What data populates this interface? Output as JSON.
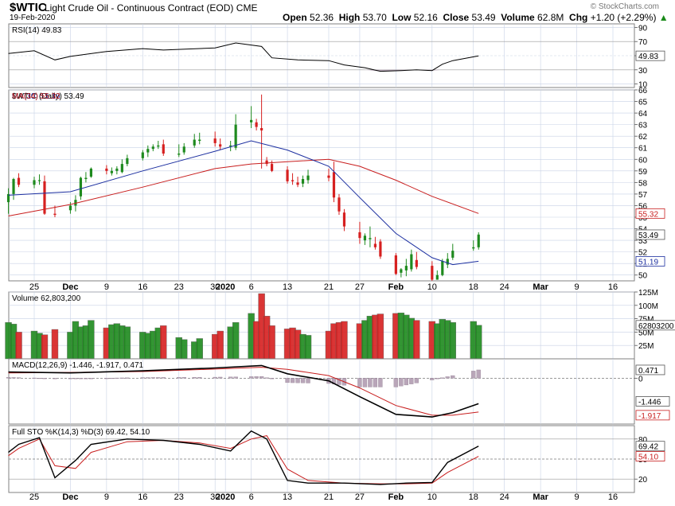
{
  "header": {
    "symbol": "$WTIC",
    "name": "Light Crude Oil - Continuous Contract (EOD)",
    "exchange": "CME",
    "date": "19-Feb-2020",
    "brand": "© StockCharts.com",
    "open_label": "Open",
    "open": "52.36",
    "high_label": "High",
    "high": "53.70",
    "low_label": "Low",
    "low": "52.16",
    "close_label": "Close",
    "close": "53.49",
    "volume_label": "Volume",
    "volume": "62.8M",
    "chg_label": "Chg",
    "chg": "+1.20 (+2.29%)",
    "chg_icon": "up-triangle-icon"
  },
  "colors": {
    "up": "#1e8a1e",
    "down": "#d62020",
    "ma10": "#1c2fa0",
    "ma34": "#c81e1e",
    "grid": "#c8d2e6",
    "panel_border": "#808080",
    "rsi_fill": "#b29cb2"
  },
  "chart_data": [
    {
      "type": "candlestick",
      "title": "$WTIC (Daily) 53.49",
      "legend": [
        {
          "name": "$WTIC (Daily)",
          "value": "53.49"
        },
        {
          "name": "MA(10)",
          "value": "51.19"
        },
        {
          "name": "MA(34)",
          "value": "55.32"
        }
      ],
      "ylim": [
        49.5,
        66
      ],
      "yticks": [
        50,
        51,
        52,
        53,
        54,
        55,
        56,
        57,
        58,
        59,
        60,
        61,
        62,
        63,
        64,
        65,
        66
      ],
      "value_tags": [
        {
          "label": "55.32",
          "value": 55.32
        },
        {
          "label": "53.49",
          "value": 53.49
        },
        {
          "label": "51.19",
          "value": 51.19
        }
      ],
      "x_ticks": [
        "25",
        "Dec",
        "9",
        "16",
        "23",
        "30",
        "2020",
        "6",
        "13",
        "21",
        "27",
        "Feb",
        "10",
        "18",
        "24",
        "Mar",
        "9",
        "16"
      ],
      "x_tick_dates": [
        "2019-11-25",
        "2019-12-02",
        "2019-12-09",
        "2019-12-16",
        "2019-12-23",
        "2019-12-30",
        "2020-01-01",
        "2020-01-06",
        "2020-01-13",
        "2020-01-21",
        "2020-01-27",
        "2020-02-03",
        "2020-02-10",
        "2020-02-18",
        "2020-02-24",
        "2020-03-02",
        "2020-03-09",
        "2020-03-16"
      ],
      "x_ticks_bold": [
        "Dec",
        "2020",
        "Feb",
        "Mar"
      ],
      "series": [
        {
          "name": "$WTIC",
          "dates": [
            "2019-11-20",
            "2019-11-21",
            "2019-11-22",
            "2019-11-25",
            "2019-11-26",
            "2019-11-27",
            "2019-11-29",
            "2019-12-02",
            "2019-12-03",
            "2019-12-04",
            "2019-12-05",
            "2019-12-06",
            "2019-12-09",
            "2019-12-10",
            "2019-12-11",
            "2019-12-12",
            "2019-12-13",
            "2019-12-16",
            "2019-12-17",
            "2019-12-18",
            "2019-12-19",
            "2019-12-20",
            "2019-12-23",
            "2019-12-24",
            "2019-12-26",
            "2019-12-27",
            "2019-12-30",
            "2019-12-31",
            "2020-01-02",
            "2020-01-03",
            "2020-01-06",
            "2020-01-07",
            "2020-01-08",
            "2020-01-09",
            "2020-01-10",
            "2020-01-13",
            "2020-01-14",
            "2020-01-15",
            "2020-01-16",
            "2020-01-17",
            "2020-01-21",
            "2020-01-22",
            "2020-01-23",
            "2020-01-24",
            "2020-01-27",
            "2020-01-28",
            "2020-01-29",
            "2020-01-30",
            "2020-01-31",
            "2020-02-03",
            "2020-02-04",
            "2020-02-05",
            "2020-02-06",
            "2020-02-07",
            "2020-02-10",
            "2020-02-11",
            "2020-02-12",
            "2020-02-13",
            "2020-02-14",
            "2020-02-18",
            "2020-02-19"
          ],
          "open": [
            56.3,
            57.0,
            58.4,
            57.8,
            58.2,
            58.1,
            55.3,
            55.6,
            56.0,
            56.8,
            58.3,
            58.5,
            59.2,
            58.8,
            59.0,
            58.9,
            59.6,
            60.1,
            60.6,
            60.9,
            61.1,
            61.3,
            60.4,
            60.6,
            61.2,
            61.6,
            61.8,
            61.3,
            61.2,
            61.0,
            63.2,
            63.2,
            62.7,
            59.9,
            59.6,
            59.1,
            58.2,
            58.0,
            57.9,
            58.2,
            58.6,
            58.9,
            56.7,
            55.4,
            53.7,
            53.0,
            53.1,
            52.7,
            52.9,
            51.7,
            50.2,
            50.4,
            50.5,
            51.3,
            50.8,
            49.6,
            50.0,
            50.9,
            51.5,
            52.3,
            52.4
          ],
          "high": [
            57.5,
            58.4,
            58.8,
            58.5,
            58.7,
            58.6,
            56.0,
            56.3,
            56.9,
            58.5,
            58.9,
            59.3,
            59.5,
            59.3,
            59.4,
            60.0,
            60.4,
            60.8,
            61.2,
            61.3,
            61.6,
            61.7,
            61.3,
            61.4,
            62.2,
            62.3,
            62.4,
            61.8,
            61.6,
            63.9,
            64.6,
            63.5,
            65.6,
            60.2,
            59.9,
            59.4,
            58.8,
            58.5,
            58.6,
            59.1,
            59.2,
            59.8,
            57.0,
            55.7,
            54.6,
            53.6,
            54.2,
            53.3,
            53.1,
            51.9,
            50.6,
            51.4,
            52.2,
            52.0,
            51.2,
            50.4,
            51.4,
            51.9,
            52.7,
            53.0,
            53.7
          ],
          "low": [
            55.3,
            56.5,
            57.6,
            57.5,
            57.8,
            55.2,
            55.0,
            55.3,
            55.5,
            56.5,
            58.0,
            58.4,
            58.7,
            58.6,
            58.7,
            58.8,
            59.4,
            59.9,
            60.2,
            60.7,
            60.9,
            60.3,
            60.2,
            60.4,
            61.0,
            61.3,
            61.1,
            60.8,
            60.7,
            60.8,
            62.7,
            62.5,
            59.2,
            59.4,
            58.9,
            57.9,
            57.8,
            57.6,
            57.6,
            57.9,
            58.1,
            56.3,
            55.2,
            53.8,
            52.7,
            52.6,
            52.4,
            52.2,
            51.4,
            50.0,
            49.8,
            49.9,
            50.3,
            50.5,
            49.5,
            49.6,
            49.9,
            50.6,
            51.3,
            52.1,
            52.2
          ],
          "close": [
            57.0,
            58.3,
            57.8,
            58.2,
            58.2,
            55.3,
            55.2,
            56.0,
            56.5,
            58.4,
            58.4,
            59.2,
            59.0,
            59.0,
            59.2,
            59.6,
            60.1,
            60.6,
            60.9,
            61.1,
            61.2,
            60.5,
            60.5,
            61.1,
            61.7,
            61.7,
            61.4,
            61.1,
            61.2,
            63.0,
            63.4,
            62.8,
            62.5,
            59.6,
            59.0,
            58.1,
            58.1,
            57.8,
            58.3,
            58.6,
            58.4,
            56.7,
            55.5,
            54.2,
            53.2,
            53.4,
            53.2,
            52.4,
            51.6,
            50.1,
            50.5,
            50.8,
            51.8,
            50.7,
            49.6,
            50.0,
            51.2,
            51.4,
            52.1,
            52.4,
            53.5
          ]
        },
        {
          "name": "MA(10)",
          "dates": [
            "2019-11-20",
            "2019-12-02",
            "2019-12-16",
            "2019-12-30",
            "2020-01-06",
            "2020-01-13",
            "2020-01-21",
            "2020-01-27",
            "2020-02-03",
            "2020-02-10",
            "2020-02-14",
            "2020-02-19"
          ],
          "values": [
            56.9,
            57.2,
            59.0,
            60.7,
            61.6,
            60.8,
            59.4,
            56.7,
            53.6,
            51.5,
            50.9,
            51.19
          ]
        },
        {
          "name": "MA(34)",
          "dates": [
            "2019-11-20",
            "2019-12-02",
            "2019-12-16",
            "2019-12-30",
            "2020-01-06",
            "2020-01-13",
            "2020-01-21",
            "2020-01-27",
            "2020-02-03",
            "2020-02-10",
            "2020-02-19"
          ],
          "values": [
            55.1,
            56.1,
            57.6,
            59.2,
            59.6,
            59.8,
            60.0,
            59.4,
            58.2,
            56.8,
            55.32
          ]
        }
      ]
    },
    {
      "type": "line",
      "title": "RSI(14) 49.83",
      "legend": [
        {
          "name": "RSI(14)",
          "value": "49.83"
        }
      ],
      "ylim": [
        5,
        95
      ],
      "yticks": [
        10,
        30,
        50,
        70,
        90
      ],
      "value_tags": [
        {
          "label": "49.83",
          "value": 49.83
        }
      ],
      "series": [
        {
          "name": "RSI(14)",
          "dates": [
            "2019-11-20",
            "2019-11-25",
            "2019-11-29",
            "2019-12-02",
            "2019-12-09",
            "2019-12-16",
            "2019-12-20",
            "2019-12-30",
            "2020-01-03",
            "2020-01-08",
            "2020-01-10",
            "2020-01-15",
            "2020-01-21",
            "2020-01-24",
            "2020-01-28",
            "2020-01-31",
            "2020-02-04",
            "2020-02-07",
            "2020-02-10",
            "2020-02-12",
            "2020-02-14",
            "2020-02-19"
          ],
          "values": [
            53,
            57,
            44,
            49,
            56,
            60,
            58,
            61,
            68,
            63,
            47,
            44,
            43,
            37,
            33,
            28,
            29,
            30,
            29,
            38,
            43,
            49.83
          ]
        }
      ]
    },
    {
      "type": "bar",
      "title": "Volume 62,803,200",
      "legend": [
        {
          "name": "Volume",
          "value": "62,803,200"
        }
      ],
      "ylim": [
        0,
        125000000
      ],
      "yticks": [
        25000000,
        50000000,
        75000000,
        100000000,
        125000000
      ],
      "ytick_labels": [
        "25M",
        "50M",
        "75M",
        "100M",
        "125M"
      ],
      "value_tags": [
        {
          "label": "62803200",
          "value": 62803200
        }
      ],
      "series": [
        {
          "name": "Volume",
          "dates": [
            "2019-11-20",
            "2019-11-21",
            "2019-11-22",
            "2019-11-25",
            "2019-11-26",
            "2019-11-27",
            "2019-11-29",
            "2019-12-02",
            "2019-12-03",
            "2019-12-04",
            "2019-12-05",
            "2019-12-06",
            "2019-12-09",
            "2019-12-10",
            "2019-12-11",
            "2019-12-12",
            "2019-12-13",
            "2019-12-16",
            "2019-12-17",
            "2019-12-18",
            "2019-12-19",
            "2019-12-20",
            "2019-12-23",
            "2019-12-24",
            "2019-12-26",
            "2019-12-27",
            "2019-12-30",
            "2019-12-31",
            "2020-01-02",
            "2020-01-03",
            "2020-01-06",
            "2020-01-07",
            "2020-01-08",
            "2020-01-09",
            "2020-01-10",
            "2020-01-13",
            "2020-01-14",
            "2020-01-15",
            "2020-01-16",
            "2020-01-17",
            "2020-01-21",
            "2020-01-22",
            "2020-01-23",
            "2020-01-24",
            "2020-01-27",
            "2020-01-28",
            "2020-01-29",
            "2020-01-30",
            "2020-01-31",
            "2020-02-03",
            "2020-02-04",
            "2020-02-05",
            "2020-02-06",
            "2020-02-07",
            "2020-02-10",
            "2020-02-11",
            "2020-02-12",
            "2020-02-13",
            "2020-02-14",
            "2020-02-18",
            "2020-02-19"
          ],
          "values": [
            68000000,
            65000000,
            50000000,
            52000000,
            48000000,
            45000000,
            55000000,
            50000000,
            70000000,
            60000000,
            62000000,
            72000000,
            58000000,
            64000000,
            66000000,
            62000000,
            60000000,
            50000000,
            48000000,
            52000000,
            58000000,
            62000000,
            40000000,
            36000000,
            32000000,
            38000000,
            46000000,
            52000000,
            60000000,
            68000000,
            85000000,
            70000000,
            122000000,
            80000000,
            62000000,
            56000000,
            58000000,
            54000000,
            46000000,
            44000000,
            52000000,
            66000000,
            68000000,
            70000000,
            66000000,
            72000000,
            80000000,
            82000000,
            84000000,
            85000000,
            86000000,
            82000000,
            76000000,
            72000000,
            70000000,
            66000000,
            74000000,
            72000000,
            68000000,
            70000000,
            62803200
          ]
        }
      ]
    },
    {
      "type": "line",
      "title": "MACD(12,26,9) -1.446, -1.917, 0.471",
      "legend": [
        {
          "name": "MACD(12,26,9)",
          "value": "-1.446, -1.917, 0.471"
        }
      ],
      "ylim": [
        -2.6,
        1.1
      ],
      "yticks": [
        0
      ],
      "value_tags": [
        {
          "label": "0.471",
          "value": 0.471
        },
        {
          "label": "-1.446",
          "value": -1.446
        },
        {
          "label": "-1.917",
          "value": -1.917
        }
      ],
      "series": [
        {
          "name": "MACD",
          "dates": [
            "2019-11-20",
            "2019-12-02",
            "2019-12-16",
            "2019-12-30",
            "2020-01-08",
            "2020-01-13",
            "2020-01-21",
            "2020-01-27",
            "2020-02-03",
            "2020-02-10",
            "2020-02-14",
            "2020-02-19"
          ],
          "values": [
            0.35,
            0.3,
            0.42,
            0.58,
            0.72,
            0.25,
            -0.15,
            -1.05,
            -2.05,
            -2.2,
            -1.95,
            -1.446
          ]
        },
        {
          "name": "Signal",
          "dates": [
            "2019-11-20",
            "2019-12-02",
            "2019-12-16",
            "2019-12-30",
            "2020-01-08",
            "2020-01-13",
            "2020-01-21",
            "2020-01-27",
            "2020-02-03",
            "2020-02-10",
            "2020-02-14",
            "2020-02-19"
          ],
          "values": [
            0.3,
            0.33,
            0.38,
            0.52,
            0.62,
            0.5,
            0.15,
            -0.55,
            -1.55,
            -2.1,
            -2.1,
            -1.917
          ]
        },
        {
          "name": "Histogram",
          "dates": [
            "2019-11-20",
            "2019-12-02",
            "2019-12-16",
            "2019-12-30",
            "2020-01-08",
            "2020-01-13",
            "2020-01-21",
            "2020-01-27",
            "2020-02-03",
            "2020-02-10",
            "2020-02-14",
            "2020-02-19"
          ],
          "values": [
            0.05,
            -0.03,
            0.04,
            0.06,
            0.1,
            -0.25,
            -0.3,
            -0.5,
            -0.5,
            -0.1,
            0.15,
            0.471
          ]
        }
      ]
    },
    {
      "type": "line",
      "title": "Full STO %K(14,3) %D(3) 69.42, 54.10",
      "legend": [
        {
          "name": "Full STO %K(14,3) %D(3)",
          "value": "69.42, 54.10"
        }
      ],
      "ylim": [
        0,
        100
      ],
      "yticks": [
        20,
        50,
        80
      ],
      "value_tags": [
        {
          "label": "69.42",
          "value": 69.42
        },
        {
          "label": "54.10",
          "value": 54.1
        }
      ],
      "series": [
        {
          "name": "%K",
          "dates": [
            "2019-11-20",
            "2019-11-22",
            "2019-11-26",
            "2019-11-29",
            "2019-12-03",
            "2019-12-06",
            "2019-12-13",
            "2019-12-20",
            "2019-12-27",
            "2020-01-02",
            "2020-01-06",
            "2020-01-09",
            "2020-01-13",
            "2020-01-17",
            "2020-01-24",
            "2020-01-31",
            "2020-02-05",
            "2020-02-10",
            "2020-02-13",
            "2020-02-19"
          ],
          "values": [
            60,
            72,
            82,
            22,
            48,
            72,
            80,
            78,
            72,
            62,
            92,
            80,
            18,
            14,
            14,
            12,
            14,
            15,
            45,
            69.42
          ]
        },
        {
          "name": "%D",
          "dates": [
            "2019-11-20",
            "2019-11-22",
            "2019-11-26",
            "2019-11-29",
            "2019-12-03",
            "2019-12-06",
            "2019-12-13",
            "2019-12-20",
            "2019-12-27",
            "2020-01-02",
            "2020-01-06",
            "2020-01-09",
            "2020-01-13",
            "2020-01-17",
            "2020-01-24",
            "2020-01-31",
            "2020-02-05",
            "2020-02-10",
            "2020-02-13",
            "2020-02-19"
          ],
          "values": [
            55,
            66,
            80,
            40,
            36,
            60,
            76,
            78,
            74,
            66,
            80,
            85,
            35,
            18,
            14,
            13,
            13,
            14,
            30,
            54.1
          ]
        }
      ]
    }
  ]
}
